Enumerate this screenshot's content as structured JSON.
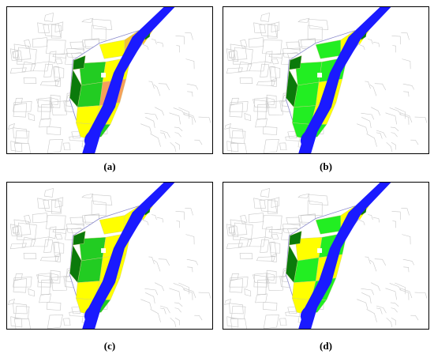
{
  "figure": {
    "panels": [
      {
        "id": "a",
        "caption": "(a)",
        "zones": [
          "#ffff00",
          "#f4c430",
          "#22cc22",
          "#ffff00",
          "#0b7a0b",
          "#f5a05a",
          "#22cc22",
          "#ffff00",
          "#ffff00",
          "#0b7a0b",
          "#ffff00",
          "#22cc22"
        ]
      },
      {
        "id": "b",
        "caption": "(b)",
        "zones": [
          "#22ee22",
          "#ffff00",
          "#22ee22",
          "#22ee22",
          "#0b7a0b",
          "#ffff00",
          "#22ee22",
          "#22ee22",
          "#ffff00",
          "#0b7a0b",
          "#22ee22",
          "#22ee22"
        ]
      },
      {
        "id": "c",
        "caption": "(c)",
        "zones": [
          "#ffff00",
          "#ffff00",
          "#22cc22",
          "#ffff00",
          "#0b7a0b",
          "#ffff00",
          "#22cc22",
          "#ffff00",
          "#ffff00",
          "#0b7a0b",
          "#ffff00",
          "#22cc22"
        ]
      },
      {
        "id": "d",
        "caption": "(d)",
        "zones": [
          "#22ee22",
          "#ffff00",
          "#ffff00",
          "#22ee22",
          "#0b7a0b",
          "#ffff00",
          "#22ee22",
          "#ffff00",
          "#22ee22",
          "#0b7a0b",
          "#ffff00",
          "#22ee22"
        ]
      }
    ]
  },
  "colors": {
    "river": "#1a1aff",
    "streets": "#c8c8c8",
    "dark_green": "#0b7a0b",
    "green": "#22cc22",
    "yellow": "#ffff00",
    "orange": "#f5a05a"
  }
}
